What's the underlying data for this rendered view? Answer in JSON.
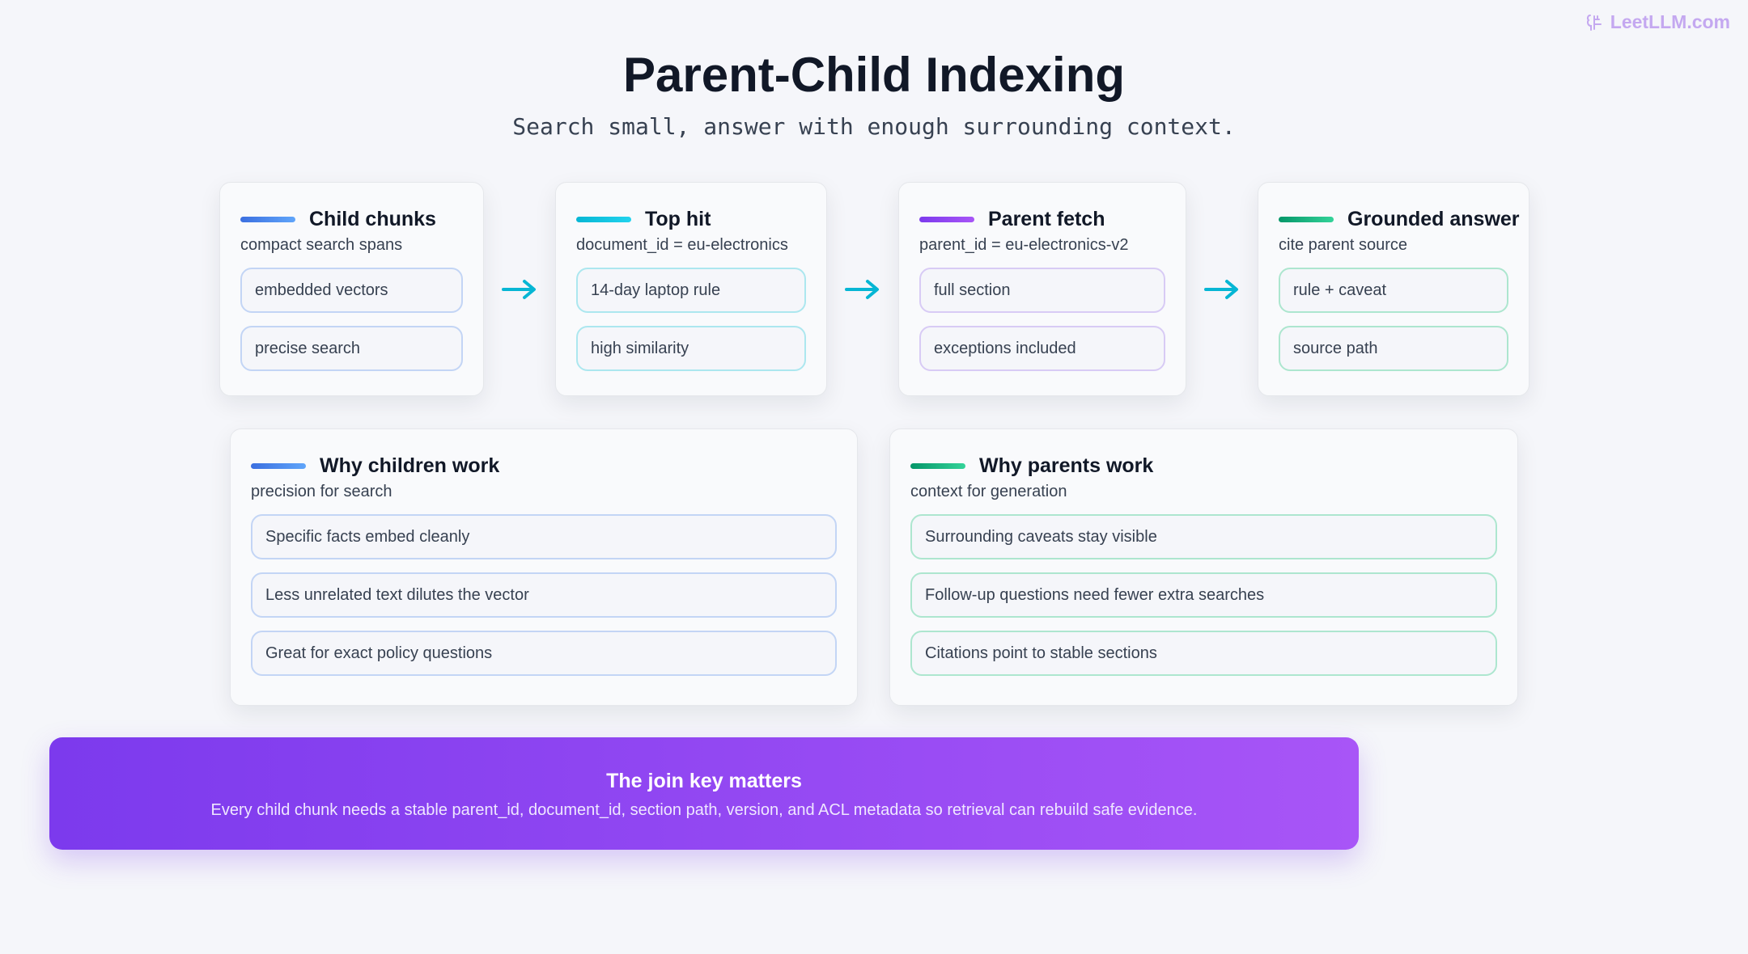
{
  "header": {
    "logo": "LeetLLM.com",
    "title": "Parent-Child Indexing",
    "subtitle": "Search small, answer with enough surrounding context."
  },
  "steps": [
    {
      "title": "Child chunks",
      "subtitle": "compact search spans",
      "items": [
        "embedded vectors",
        "precise search"
      ]
    },
    {
      "title": "Top hit",
      "subtitle": "document_id = eu-electronics",
      "items": [
        "14-day laptop rule",
        "high similarity"
      ]
    },
    {
      "title": "Parent fetch",
      "subtitle": "parent_id = eu-electronics-v2",
      "items": [
        "full section",
        "exceptions included"
      ]
    },
    {
      "title": "Grounded answer",
      "subtitle": "cite parent source",
      "items": [
        "rule + caveat",
        "source path"
      ]
    }
  ],
  "reasons": [
    {
      "title": "Why children work",
      "subtitle": "precision for search",
      "items": [
        "Specific facts embed cleanly",
        "Less unrelated text dilutes the vector",
        "Great for exact policy questions"
      ]
    },
    {
      "title": "Why parents work",
      "subtitle": "context for generation",
      "items": [
        "Surrounding caveats stay visible",
        "Follow-up questions need fewer extra searches",
        "Citations point to stable sections"
      ]
    }
  ],
  "callout": {
    "title": "The join key matters",
    "text": "Every child chunk needs a stable parent_id, document_id, section path, version, and ACL metadata so retrieval can rebuild safe evidence."
  }
}
